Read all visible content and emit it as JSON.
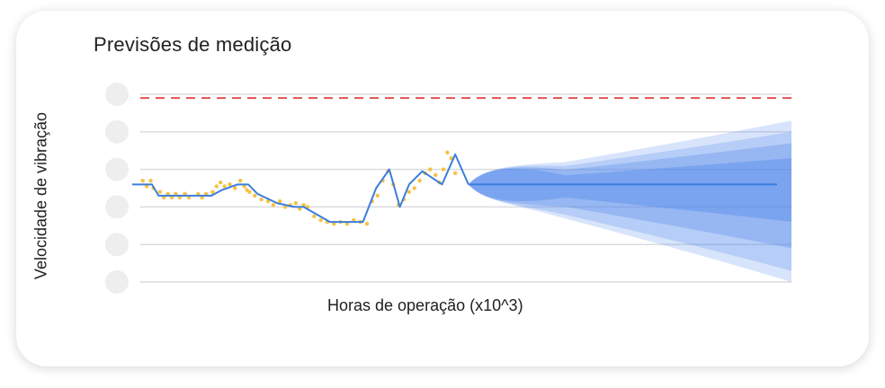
{
  "chart_data": {
    "type": "line",
    "title": "Previsões de medição",
    "xlabel": "Horas de operação (x10^3)",
    "ylabel": "Velocidade de vibração",
    "ylim": [
      0,
      5
    ],
    "y_ticks": [
      0,
      1,
      2,
      3,
      4,
      5
    ],
    "y_tick_labels": [
      "",
      "",
      "",
      "",
      "",
      ""
    ],
    "grid": true,
    "threshold": {
      "value": 4.9,
      "color": "#e05252"
    },
    "colors": {
      "line": "#3b7ddd",
      "points": "#f5c242",
      "forecast": "#4f86ec",
      "grid": "#dadce0",
      "tick_placeholder": "#eeeeee"
    },
    "series": [
      {
        "x": [
          0,
          1.5,
          2,
          3,
          4.5,
          6,
          6.8,
          8,
          8.8,
          9.5,
          11,
          12.3,
          13,
          15,
          16.5,
          17.5,
          18.5,
          19.5,
          20.3,
          21,
          22,
          23.5,
          24.5,
          25.5
        ],
        "values": [
          2.6,
          2.6,
          2.3,
          2.3,
          2.3,
          2.3,
          2.45,
          2.6,
          2.6,
          2.35,
          2.1,
          2.0,
          2.0,
          1.6,
          1.6,
          1.6,
          2.5,
          3.0,
          2.0,
          2.6,
          2.95,
          2.6,
          3.4,
          2.6
        ]
      }
    ],
    "observations": {
      "x": [
        0.8,
        1.1,
        1.4,
        1.6,
        2.1,
        2.4,
        2.7,
        3.0,
        3.3,
        3.6,
        4.0,
        4.3,
        5.0,
        5.3,
        5.6,
        6.1,
        6.4,
        6.7,
        7.0,
        7.4,
        7.8,
        8.2,
        8.5,
        8.7,
        8.9,
        9.3,
        9.8,
        10.3,
        10.7,
        11.2,
        11.6,
        12.0,
        12.4,
        12.7,
        13.0,
        13.3,
        13.8,
        14.3,
        14.8,
        15.3,
        15.8,
        16.3,
        16.8,
        17.3,
        17.8,
        18.2,
        18.6,
        19.0,
        19.4,
        19.8,
        20.2,
        20.6,
        21.0,
        21.4,
        21.8,
        22.2,
        22.6,
        23.0,
        23.3,
        23.6,
        23.9,
        24.2,
        24.5
      ],
      "y": [
        2.7,
        2.55,
        2.7,
        2.5,
        2.4,
        2.25,
        2.35,
        2.25,
        2.35,
        2.25,
        2.35,
        2.25,
        2.35,
        2.25,
        2.35,
        2.4,
        2.55,
        2.65,
        2.55,
        2.6,
        2.5,
        2.7,
        2.55,
        2.45,
        2.4,
        2.3,
        2.2,
        2.15,
        2.05,
        2.15,
        2.0,
        2.05,
        2.1,
        1.95,
        2.05,
        2.0,
        1.75,
        1.65,
        1.6,
        1.55,
        1.6,
        1.55,
        1.65,
        1.6,
        1.55,
        2.15,
        2.3,
        2.7,
        2.95,
        2.6,
        2.05,
        2.2,
        2.4,
        2.5,
        2.7,
        2.9,
        3.0,
        2.85,
        2.65,
        3.0,
        3.45,
        3.3,
        2.9
      ]
    },
    "forecast": {
      "x_start": 25.5,
      "x_end": 50,
      "center": 2.6,
      "bands": [
        {
          "upper": 4.3,
          "lower": 0.0,
          "opacity": 0.22
        },
        {
          "upper": 4.0,
          "lower": 0.3,
          "opacity": 0.25
        },
        {
          "upper": 3.7,
          "lower": 0.9,
          "opacity": 0.3
        },
        {
          "upper": 3.3,
          "lower": 1.6,
          "opacity": 0.38
        }
      ]
    },
    "xlim": [
      0,
      50
    ]
  }
}
